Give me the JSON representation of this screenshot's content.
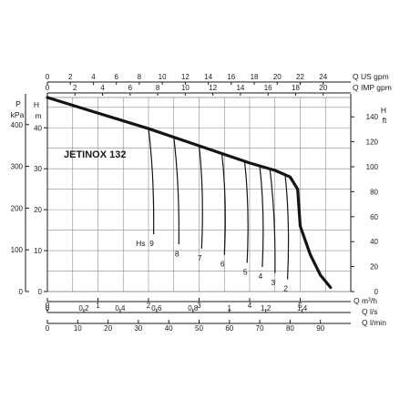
{
  "chart_data": {
    "type": "line",
    "title": "JETINOX 132",
    "colors": {
      "curve": "#141414",
      "grid": "#8a8a8a",
      "axis": "#1a1a1a",
      "text": "#1a1a1a"
    },
    "grid": true,
    "axes": {
      "left_pressure": {
        "label_top": "P",
        "label_bottom": "kPa",
        "ticks": [
          0,
          100,
          200,
          300,
          400
        ],
        "range": [
          0,
          465
        ]
      },
      "left_head_m": {
        "label_top": "H",
        "label_bottom": "m",
        "ticks": [
          0,
          10,
          20,
          30,
          40
        ],
        "range": [
          0,
          47.4
        ]
      },
      "right_head_ft": {
        "label_top": "H",
        "label_bottom": "ft",
        "ticks": [
          0,
          20,
          40,
          60,
          80,
          100,
          120,
          140
        ],
        "range": [
          0,
          155.5
        ]
      },
      "top_us_gpm": {
        "label": "Q US gpm",
        "ticks": [
          0,
          2,
          4,
          6,
          8,
          10,
          12,
          14,
          16,
          18,
          20,
          22,
          24
        ],
        "range": [
          0,
          26.4
        ]
      },
      "top_imp_gpm": {
        "label": "Q IMP gpm",
        "ticks": [
          0,
          2,
          4,
          6,
          8,
          10,
          12,
          14,
          16,
          18,
          20
        ],
        "range": [
          0,
          22
        ]
      },
      "bottom_m3h": {
        "label": "Q m³/h",
        "ticks": [
          "0",
          "1",
          "2",
          "3",
          "4",
          "5"
        ],
        "range": [
          0,
          6
        ]
      },
      "bottom_ls": {
        "label": "Q l/s",
        "ticks": [
          "0",
          "0,2",
          "0,4",
          "0,6",
          "0,8",
          "1",
          "1,2",
          "1,4"
        ],
        "range": [
          0,
          1.667
        ]
      },
      "bottom_lmin": {
        "label": "Q l/min",
        "ticks": [
          "0",
          "10",
          "20",
          "30",
          "40",
          "50",
          "60",
          "70",
          "80",
          "90"
        ],
        "range": [
          0,
          100
        ]
      }
    },
    "series": [
      {
        "x_unit": "m3/h",
        "y_unit": "m",
        "points": [
          [
            0,
            47.4
          ],
          [
            1,
            43.6
          ],
          [
            2,
            39.8
          ],
          [
            3,
            35.6
          ],
          [
            4,
            31.4
          ],
          [
            4.5,
            29.6
          ],
          [
            4.8,
            28.0
          ],
          [
            4.95,
            25.0
          ],
          [
            5.0,
            16.0
          ],
          [
            5.2,
            9.0
          ],
          [
            5.4,
            4.0
          ],
          [
            5.6,
            1.0
          ]
        ]
      }
    ],
    "suction_curves": {
      "label_prefix": "Hs",
      "curves": [
        {
          "label": "9",
          "start": [
            2.0,
            39.8
          ],
          "end": [
            2.1,
            14.0
          ]
        },
        {
          "label": "8",
          "start": [
            2.5,
            37.6
          ],
          "end": [
            2.6,
            11.5
          ]
        },
        {
          "label": "7",
          "start": [
            3.0,
            35.6
          ],
          "end": [
            3.05,
            10.5
          ]
        },
        {
          "label": "6",
          "start": [
            3.45,
            33.8
          ],
          "end": [
            3.5,
            9.0
          ]
        },
        {
          "label": "5",
          "start": [
            3.9,
            31.8
          ],
          "end": [
            3.95,
            7.0
          ]
        },
        {
          "label": "4",
          "start": [
            4.2,
            30.6
          ],
          "end": [
            4.25,
            6.0
          ]
        },
        {
          "label": "3",
          "start": [
            4.4,
            29.9
          ],
          "end": [
            4.5,
            4.5
          ]
        },
        {
          "label": "2",
          "start": [
            4.7,
            28.7
          ],
          "end": [
            4.75,
            3.0
          ]
        }
      ]
    }
  }
}
